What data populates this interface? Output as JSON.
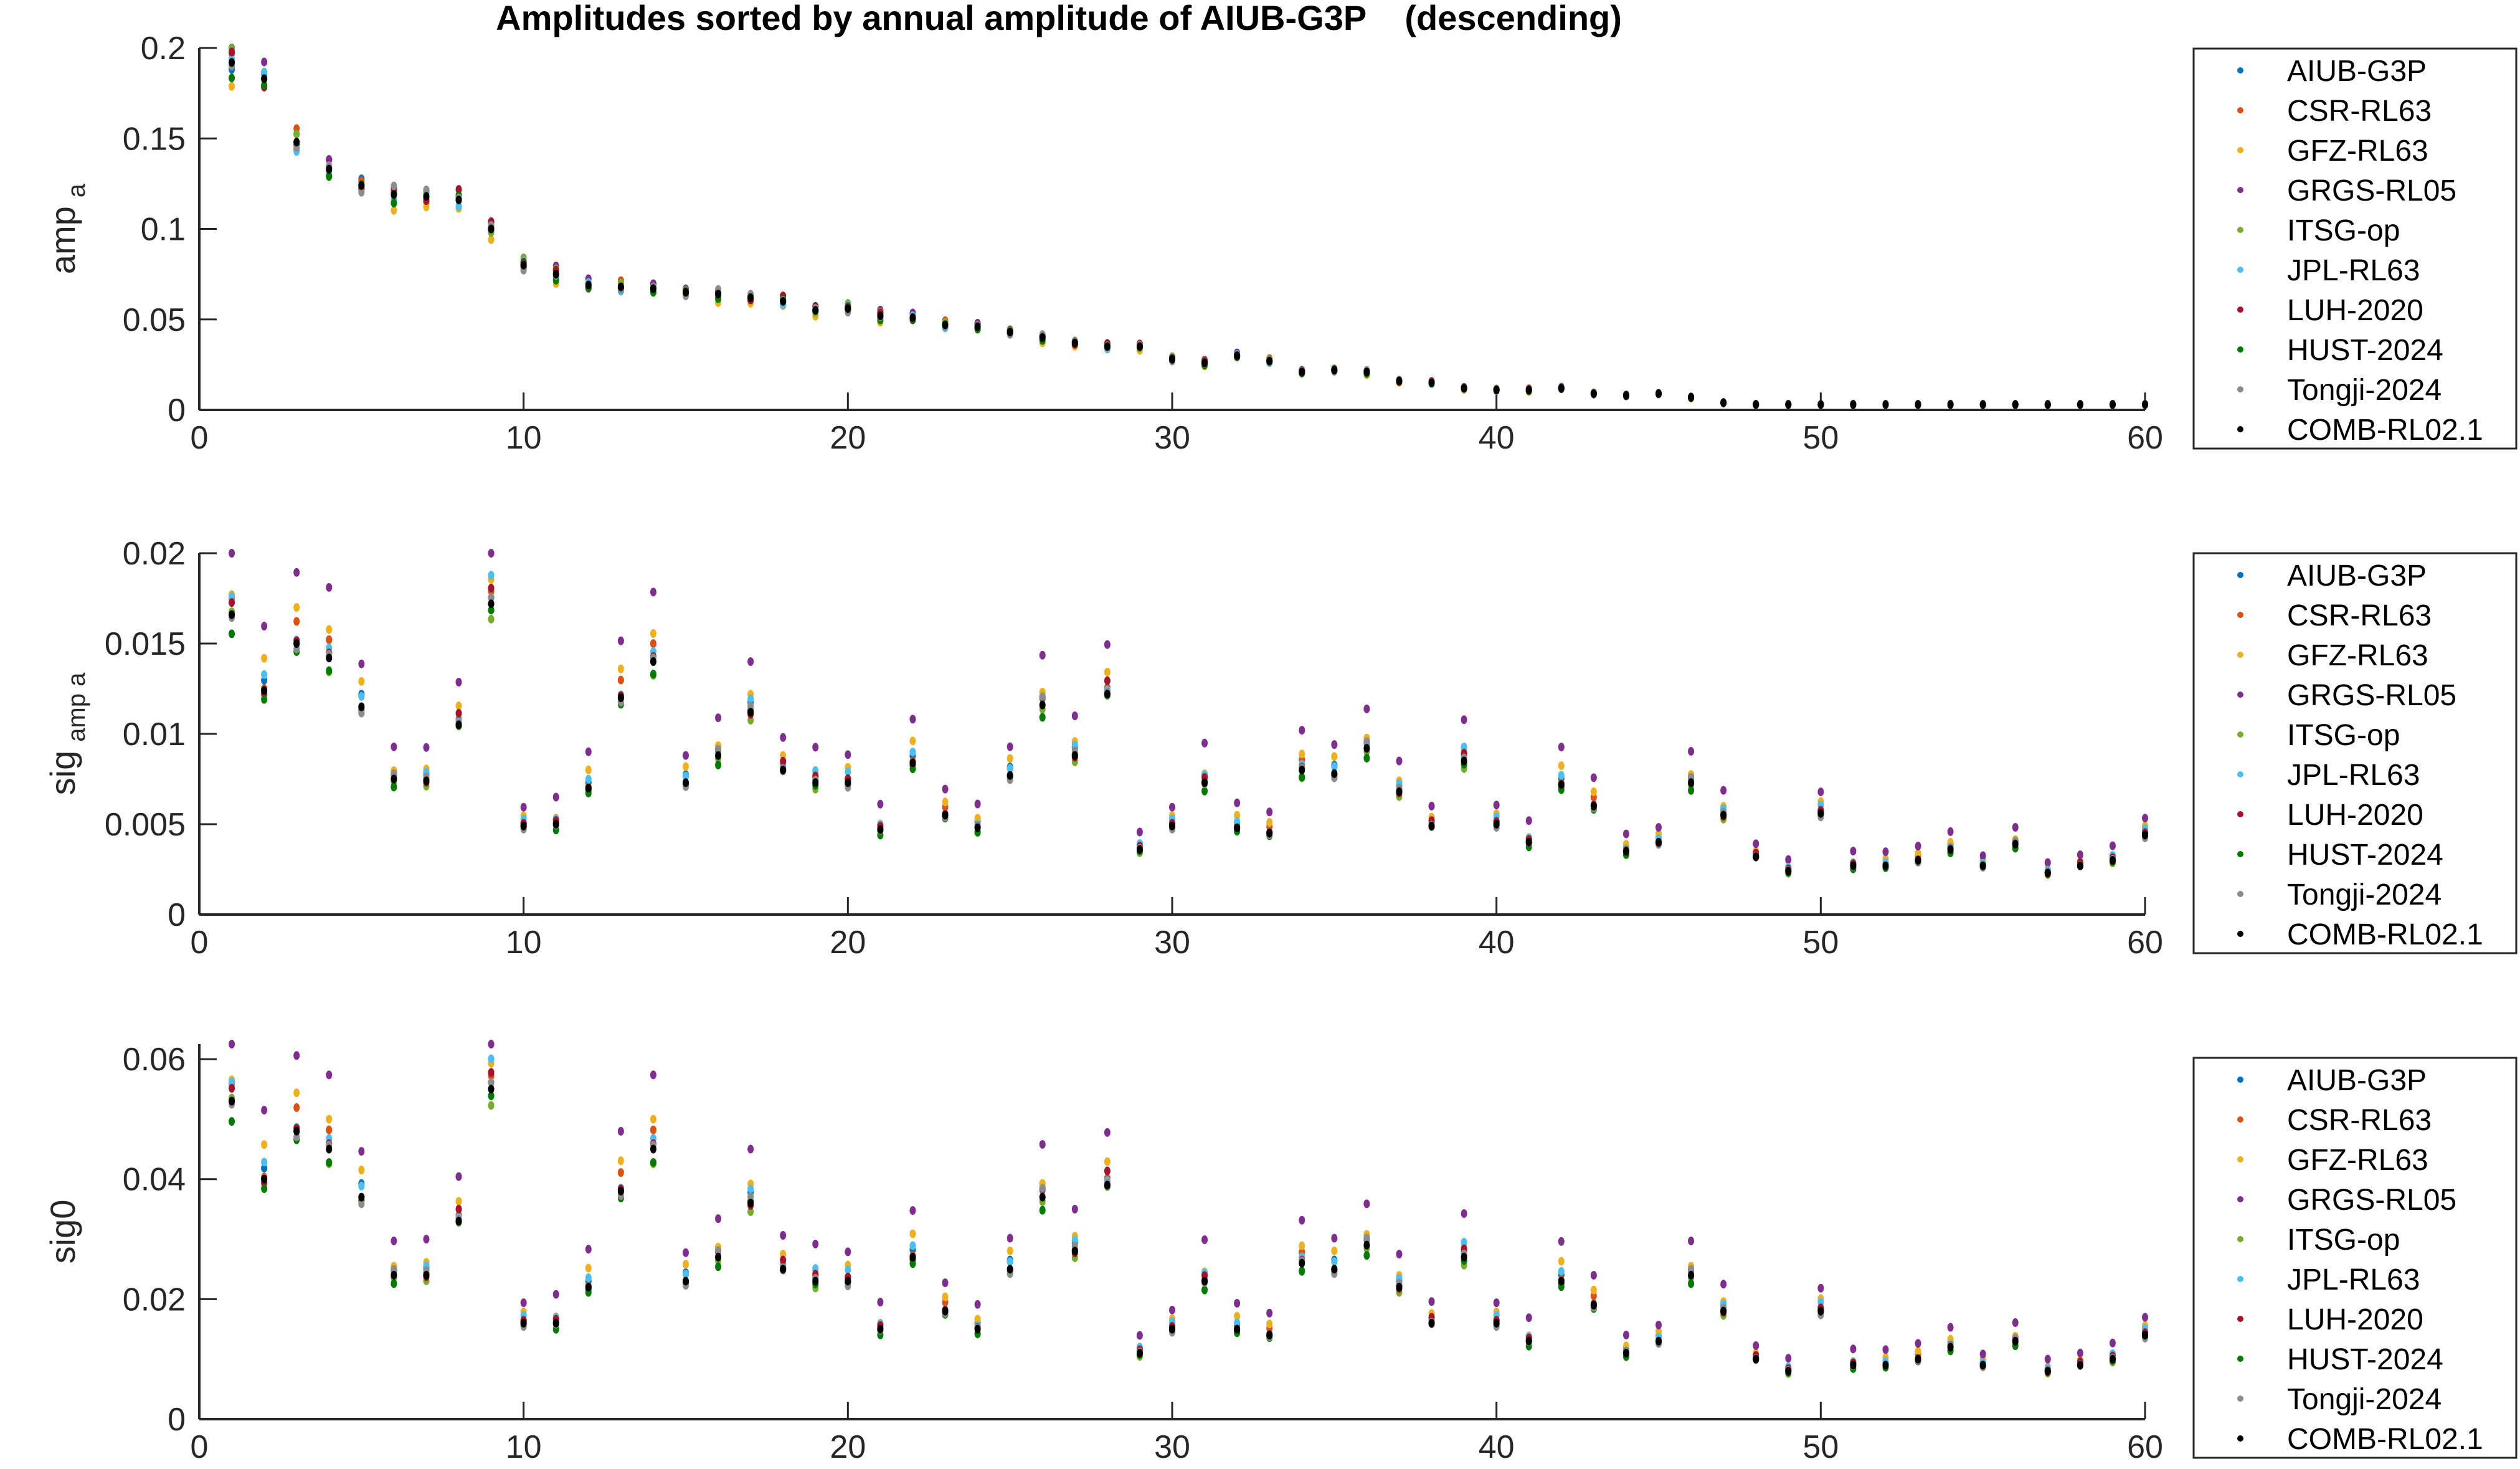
{
  "chart_data": [
    {
      "type": "scatter",
      "title": "Amplitudes sorted by annual amplitude of AIUB-G3P    (descending)",
      "ylabel_main": "amp",
      "ylabel_sub": "a",
      "xlim": [
        0,
        60
      ],
      "ylim": [
        0,
        0.2
      ],
      "xticks": [
        "0",
        "10",
        "20",
        "30",
        "40",
        "50",
        "60"
      ],
      "yticks": [
        "0",
        "0.05",
        "0.1",
        "0.15",
        "0.2"
      ],
      "ytick_values": [
        0,
        0.05,
        0.1,
        0.15,
        0.2
      ],
      "legend_position": "right",
      "base": [
        0.192,
        0.183,
        0.148,
        0.133,
        0.124,
        0.119,
        0.118,
        0.116,
        0.1,
        0.08,
        0.075,
        0.069,
        0.068,
        0.067,
        0.065,
        0.064,
        0.062,
        0.06,
        0.055,
        0.056,
        0.052,
        0.051,
        0.047,
        0.046,
        0.043,
        0.04,
        0.037,
        0.035,
        0.035,
        0.028,
        0.026,
        0.03,
        0.027,
        0.021,
        0.022,
        0.021,
        0.016,
        0.015,
        0.012,
        0.011,
        0.011,
        0.012,
        0.009,
        0.008,
        0.009,
        0.007,
        0.004,
        0.003,
        0.003,
        0.003,
        0.003,
        0.003,
        0.003,
        0.003,
        0.003,
        0.003,
        0.003,
        0.003,
        0.003,
        0.003
      ],
      "series_factors": [
        1.0,
        1.01,
        0.96,
        1.02,
        1.01,
        1.0,
        1.01,
        0.99,
        1.0,
        1.0
      ]
    },
    {
      "type": "scatter",
      "title": "",
      "ylabel_main": "sig",
      "ylabel_sub": "amp a",
      "xlim": [
        0,
        60
      ],
      "ylim": [
        0,
        0.02
      ],
      "xticks": [
        "0",
        "10",
        "20",
        "30",
        "40",
        "50",
        "60"
      ],
      "yticks": [
        "0",
        "0.005",
        "0.01",
        "0.015",
        "0.02"
      ],
      "ytick_values": [
        0,
        0.005,
        0.01,
        0.015,
        0.02
      ],
      "legend_position": "right",
      "base": [
        0.0166,
        0.0124,
        0.015,
        0.0142,
        0.0115,
        0.0075,
        0.0074,
        0.0105,
        0.0172,
        0.0049,
        0.005,
        0.007,
        0.012,
        0.014,
        0.0073,
        0.0088,
        0.0112,
        0.008,
        0.0073,
        0.0073,
        0.0047,
        0.0084,
        0.0055,
        0.0048,
        0.0077,
        0.0116,
        0.0088,
        0.0122,
        0.0036,
        0.0049,
        0.0073,
        0.0048,
        0.0045,
        0.008,
        0.0078,
        0.0092,
        0.0068,
        0.0049,
        0.0085,
        0.005,
        0.004,
        0.0072,
        0.006,
        0.0035,
        0.004,
        0.0073,
        0.0055,
        0.0032,
        0.0024,
        0.0056,
        0.0027,
        0.0027,
        0.003,
        0.0036,
        0.0027,
        0.0039,
        0.0023,
        0.0027,
        0.003,
        0.0044
      ],
      "series_factors": [
        1.03,
        1.04,
        1.1,
        1.25,
        0.98,
        1.05,
        1.02,
        0.97,
        1.0,
        1.0
      ]
    },
    {
      "type": "scatter",
      "title": "",
      "ylabel_main": "sig0",
      "ylabel_sub": "",
      "xlim": [
        0,
        60
      ],
      "ylim": [
        0,
        0.0625
      ],
      "xticks": [
        "0",
        "10",
        "20",
        "30",
        "40",
        "50",
        "60"
      ],
      "yticks": [
        "0",
        "0.02",
        "0.04",
        "0.06"
      ],
      "ytick_values": [
        0,
        0.02,
        0.04,
        0.06
      ],
      "legend_position": "right",
      "base": [
        0.053,
        0.04,
        0.048,
        0.045,
        0.037,
        0.024,
        0.024,
        0.033,
        0.055,
        0.016,
        0.016,
        0.022,
        0.038,
        0.045,
        0.023,
        0.027,
        0.036,
        0.025,
        0.023,
        0.023,
        0.015,
        0.027,
        0.018,
        0.015,
        0.025,
        0.037,
        0.028,
        0.039,
        0.011,
        0.015,
        0.023,
        0.015,
        0.014,
        0.026,
        0.025,
        0.029,
        0.022,
        0.016,
        0.027,
        0.016,
        0.013,
        0.023,
        0.019,
        0.011,
        0.013,
        0.024,
        0.018,
        0.01,
        0.008,
        0.018,
        0.009,
        0.009,
        0.01,
        0.012,
        0.009,
        0.013,
        0.008,
        0.009,
        0.01,
        0.014
      ],
      "series_factors": [
        1.03,
        1.04,
        1.1,
        1.25,
        0.98,
        1.05,
        1.02,
        0.97,
        1.0,
        1.0
      ]
    }
  ],
  "series": [
    {
      "name": "AIUB-G3P",
      "color": "#0072bd"
    },
    {
      "name": "CSR-RL63",
      "color": "#d95319"
    },
    {
      "name": "GFZ-RL63",
      "color": "#edb120"
    },
    {
      "name": "GRGS-RL05",
      "color": "#7e2f8e"
    },
    {
      "name": "ITSG-op",
      "color": "#77ac30"
    },
    {
      "name": "JPL-RL63",
      "color": "#4dbeee"
    },
    {
      "name": "LUH-2020",
      "color": "#a2142f"
    },
    {
      "name": "HUST-2024",
      "color": "#007a00"
    },
    {
      "name": "Tongji-2024",
      "color": "#8c8c8c"
    },
    {
      "name": "COMB-RL02.1",
      "color": "#000000"
    }
  ]
}
